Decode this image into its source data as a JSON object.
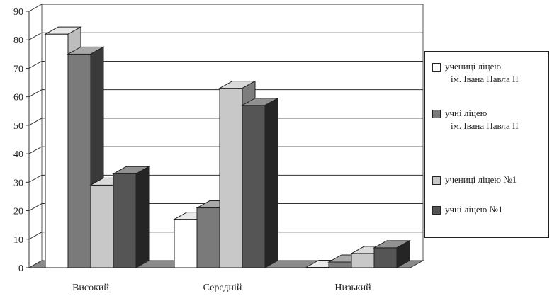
{
  "chart_data": {
    "type": "bar",
    "style": "3d-clustered-column",
    "categories": [
      "Високий",
      "Середній",
      "Низький"
    ],
    "series": [
      {
        "line1": "учениці ліцею",
        "line2": "ім. Івана Павла ІІ",
        "values": [
          82,
          17,
          0
        ],
        "color": "#ffffff",
        "side": "#bdbdbd"
      },
      {
        "line1": "учні ліцею",
        "line2": "ім. Івана Павла ІІ",
        "values": [
          75,
          21,
          2
        ],
        "color": "#7a7a7a",
        "side": "#3a3a3a"
      },
      {
        "line1": "учениці ліцею №1",
        "line2": "",
        "values": [
          29,
          63,
          5
        ],
        "color": "#c8c8c8",
        "side": "#7d7d7d"
      },
      {
        "line1": "учні ліцею №1",
        "line2": "",
        "values": [
          33,
          57,
          7
        ],
        "color": "#555555",
        "side": "#252525"
      }
    ],
    "ylim": [
      0,
      90
    ],
    "yticks": [
      0,
      10,
      20,
      30,
      40,
      50,
      60,
      70,
      80,
      90
    ],
    "grid": true,
    "legend_position": "right"
  }
}
